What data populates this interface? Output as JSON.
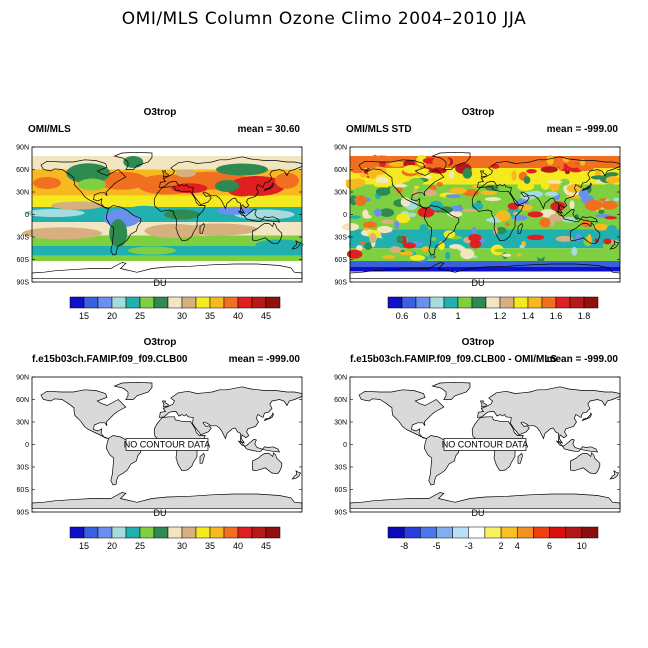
{
  "figure_title": "OMI/MLS Column Ozone Climo 2004–2010 JJA",
  "lat_labels": [
    "90N",
    "60N",
    "30N",
    "0",
    "30S",
    "60S",
    "90S"
  ],
  "panels": [
    {
      "title": "O3trop",
      "left_label": "OMI/MLS",
      "right_label": "mean =  30.60",
      "has_data": true,
      "no_data_text": "",
      "colorbar": {
        "title": "DU",
        "colors": [
          "#0f10c8",
          "#3a5fe0",
          "#6a90ee",
          "#a6dcdc",
          "#20b0b0",
          "#7ed040",
          "#2e8a50",
          "#f2e6c0",
          "#d8b080",
          "#f5ea20",
          "#f8b820",
          "#f07020",
          "#e02020",
          "#b81818",
          "#901010"
        ],
        "labels": [
          "15",
          "20",
          "25",
          "30",
          "35",
          "40",
          "45"
        ]
      }
    },
    {
      "title": "O3trop",
      "left_label": "OMI/MLS STD",
      "right_label": "mean = -999.00",
      "has_data": true,
      "no_data_text": "",
      "colorbar": {
        "title": "DU",
        "colors": [
          "#0f10c8",
          "#3a5fe0",
          "#6a90ee",
          "#a6dcdc",
          "#20b0b0",
          "#7ed040",
          "#2e8a50",
          "#f2e6c0",
          "#d8b080",
          "#f5ea20",
          "#f8b820",
          "#f07020",
          "#e02020",
          "#b81818",
          "#901010"
        ],
        "labels": [
          "0.6",
          "0.8",
          "1",
          "1.2",
          "1.4",
          "1.6",
          "1.8"
        ]
      }
    },
    {
      "title": "O3trop",
      "left_label": "f.e15b03ch.FAMIP.f09_f09.CLB00",
      "right_label": "mean = -999.00",
      "has_data": false,
      "no_data_text": "NO CONTOUR DATA",
      "colorbar": {
        "title": "DU",
        "colors": [
          "#0f10c8",
          "#3a5fe0",
          "#6a90ee",
          "#a6dcdc",
          "#20b0b0",
          "#7ed040",
          "#2e8a50",
          "#f2e6c0",
          "#d8b080",
          "#f5ea20",
          "#f8b820",
          "#f07020",
          "#e02020",
          "#b81818",
          "#901010"
        ],
        "labels": [
          "15",
          "20",
          "25",
          "30",
          "35",
          "40",
          "45"
        ]
      }
    },
    {
      "title": "O3trop",
      "left_label": "f.e15b03ch.FAMIP.f09_f09.CLB00 - OMI/MLS",
      "right_label": "mean = -999.00",
      "has_data": false,
      "no_data_text": "NO CONTOUR DATA",
      "colorbar": {
        "title": "DU",
        "colors": [
          "#0a0ab8",
          "#2a3ee0",
          "#4a78ec",
          "#80b0f0",
          "#b8e0f8",
          "#ffffff",
          "#fbf060",
          "#f8c020",
          "#f59020",
          "#f04010",
          "#d81010",
          "#b01818",
          "#8a1010"
        ],
        "labels": [
          "-8",
          "-5",
          "-3",
          "2",
          "4",
          "6",
          "10"
        ]
      }
    }
  ]
}
